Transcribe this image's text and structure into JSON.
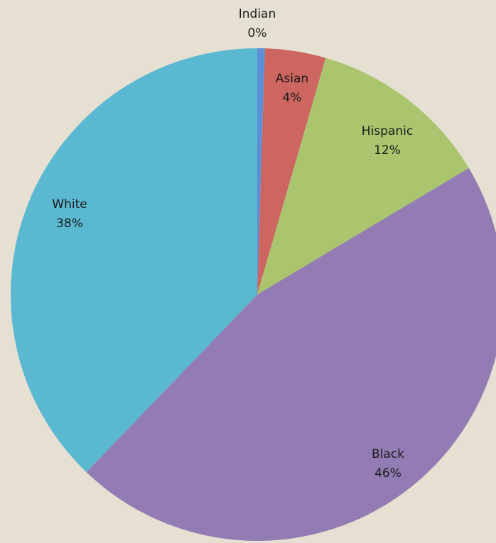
{
  "chart_data": {
    "type": "pie",
    "title": "",
    "slices": [
      {
        "label": "Indian",
        "value": 0.5,
        "display": "0%",
        "color": "#5B8FD6"
      },
      {
        "label": "Asian",
        "value": 4,
        "display": "4%",
        "color": "#CD6661"
      },
      {
        "label": "Hispanic",
        "value": 12,
        "display": "12%",
        "color": "#AAC56D"
      },
      {
        "label": "Black",
        "value": 46,
        "display": "46%",
        "color": "#937CB3"
      },
      {
        "label": "White",
        "value": 38,
        "display": "38%",
        "color": "#5BB8D1"
      }
    ],
    "start_angle": "12 o'clock",
    "direction": "clockwise",
    "legend": "none",
    "background": "#E6E0D3"
  }
}
